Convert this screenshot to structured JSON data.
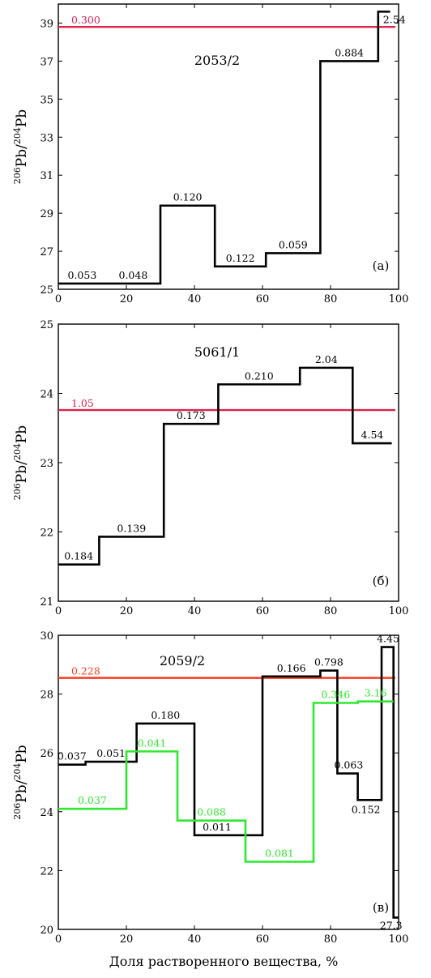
{
  "figure": {
    "xlabel": "Доля растворенного вещества, %",
    "ylabel_parts": [
      "206",
      "Pb/",
      "204",
      "Pb"
    ],
    "colors": {
      "step": "#000000",
      "green": "#2ee82e",
      "red_line": "#e0204a",
      "orange_line": "#ff3b1f"
    }
  },
  "chart_data": [
    {
      "type": "step",
      "title": "2053/2",
      "panel_label": "(а)",
      "xlim": [
        0,
        100
      ],
      "ylim": [
        25,
        40
      ],
      "xticks": [
        "0",
        "20",
        "40",
        "60",
        "80",
        "100"
      ],
      "yticks": [
        "25",
        "27",
        "29",
        "31",
        "33",
        "35",
        "37",
        "39"
      ],
      "grid": false,
      "series": [
        {
          "color": "#000000",
          "steps": [
            {
              "x0": 0,
              "x1": 14,
              "y": 25.3,
              "label": "0.053"
            },
            {
              "x0": 14,
              "x1": 30,
              "y": 25.3,
              "label": "0.048"
            },
            {
              "x0": 30,
              "x1": 46,
              "y": 29.4,
              "label": "0.120"
            },
            {
              "x0": 46,
              "x1": 61,
              "y": 26.2,
              "label": "0.122"
            },
            {
              "x0": 61,
              "x1": 77,
              "y": 26.9,
              "label": "0.059"
            },
            {
              "x0": 77,
              "x1": 94,
              "y": 37.0,
              "label": "0.884"
            },
            {
              "x0": 94,
              "x1": 97.5,
              "y": 39.6,
              "label": "2.54"
            }
          ]
        }
      ],
      "hlines": [
        {
          "y": 38.8,
          "label": "0.300",
          "color": "#e0204a"
        }
      ]
    },
    {
      "type": "step",
      "title": "5061/1",
      "panel_label": "(б)",
      "xlim": [
        0,
        100
      ],
      "ylim": [
        21,
        25
      ],
      "xticks": [
        "0",
        "20",
        "40",
        "60",
        "80",
        "100"
      ],
      "yticks": [
        "21",
        "22",
        "23",
        "24",
        "25"
      ],
      "grid": false,
      "series": [
        {
          "color": "#000000",
          "steps": [
            {
              "x0": 0,
              "x1": 12,
              "y": 21.53,
              "label": "0.184"
            },
            {
              "x0": 12,
              "x1": 31,
              "y": 21.93,
              "label": "0.139"
            },
            {
              "x0": 31,
              "x1": 47,
              "y": 23.56,
              "label": "0.173"
            },
            {
              "x0": 47,
              "x1": 71,
              "y": 24.13,
              "label": "0.210"
            },
            {
              "x0": 71,
              "x1": 86.5,
              "y": 24.37,
              "label": "2.04"
            },
            {
              "x0": 86.5,
              "x1": 98,
              "y": 23.28,
              "label": "4.54"
            }
          ]
        }
      ],
      "hlines": [
        {
          "y": 23.76,
          "label": "1.05",
          "color": "#e0204a"
        }
      ]
    },
    {
      "type": "step",
      "title": "2059/2",
      "panel_label": "(в)",
      "xlim": [
        0,
        100
      ],
      "ylim": [
        20,
        30
      ],
      "xticks": [
        "0",
        "20",
        "40",
        "60",
        "80",
        "100"
      ],
      "yticks": [
        "20",
        "22",
        "24",
        "26",
        "28",
        "30"
      ],
      "xlabel": "Доля растворенного вещества, %",
      "grid": false,
      "series": [
        {
          "color": "#000000",
          "steps": [
            {
              "x0": 0,
              "x1": 8,
              "y": 25.6,
              "label": "0.037"
            },
            {
              "x0": 8,
              "x1": 23,
              "y": 25.7,
              "label": "0.051"
            },
            {
              "x0": 23,
              "x1": 40,
              "y": 27.0,
              "label": "0.180"
            },
            {
              "x0": 40,
              "x1": 60,
              "y": 23.2,
              "label": "0.011"
            },
            {
              "x0": 60,
              "x1": 77,
              "y": 28.6,
              "label": "0.166"
            },
            {
              "x0": 77,
              "x1": 82,
              "y": 28.8,
              "label": "0.798"
            },
            {
              "x0": 82,
              "x1": 88,
              "y": 25.3,
              "label": "0.063"
            },
            {
              "x0": 88,
              "x1": 95,
              "y": 24.4,
              "label": "0.152"
            },
            {
              "x0": 95,
              "x1": 98.5,
              "y": 29.6,
              "label": "4.45"
            },
            {
              "x0": 98.5,
              "x1": 100,
              "y": 20.4,
              "label": "27.3"
            }
          ]
        },
        {
          "color": "#2ee82e",
          "steps": [
            {
              "x0": 0,
              "x1": 20,
              "y": 24.1,
              "label": "0.037"
            },
            {
              "x0": 20,
              "x1": 35,
              "y": 26.05,
              "label": "0.041"
            },
            {
              "x0": 35,
              "x1": 55,
              "y": 23.7,
              "label": "0.088"
            },
            {
              "x0": 55,
              "x1": 75,
              "y": 22.3,
              "label": "0.081"
            },
            {
              "x0": 75,
              "x1": 88,
              "y": 27.7,
              "label": "0.346"
            },
            {
              "x0": 88,
              "x1": 98.5,
              "y": 27.75,
              "label": "3.16"
            }
          ]
        }
      ],
      "hlines": [
        {
          "y": 28.55,
          "label": "0.228",
          "color": "#ff3b1f"
        }
      ]
    }
  ]
}
